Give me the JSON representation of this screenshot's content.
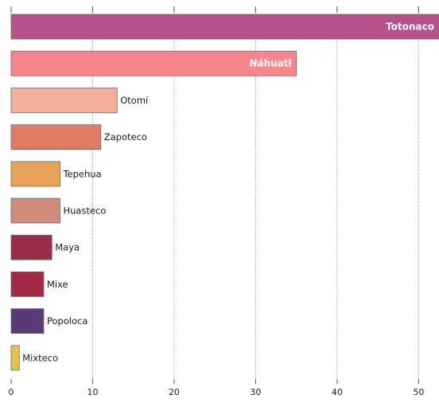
{
  "chart_data": {
    "type": "bar",
    "orientation": "horizontal",
    "categories": [
      "Totonaco",
      "Náhuatl",
      "Otomí",
      "Zapoteco",
      "Tepehua",
      "Huasteco",
      "Maya",
      "Mixe",
      "Popoloca",
      "Mixteco"
    ],
    "values": [
      57,
      35,
      13,
      11,
      6,
      6,
      5,
      4,
      4,
      1
    ],
    "colors": [
      "#b5528a",
      "#f8868c",
      "#f4b09a",
      "#e07b66",
      "#e8a35a",
      "#d08a7a",
      "#9a2e48",
      "#a32a45",
      "#5b3a7a",
      "#e6c24a"
    ],
    "label_inside": [
      true,
      true,
      false,
      false,
      false,
      false,
      false,
      false,
      false,
      false
    ],
    "xlim": [
      0,
      52.5
    ],
    "xticks": [
      0,
      10,
      20,
      30,
      40,
      50
    ],
    "xtick_labels": [
      "0",
      "10",
      "20",
      "30",
      "40",
      "50"
    ],
    "grid": true,
    "title": "",
    "xlabel": "",
    "ylabel": ""
  }
}
